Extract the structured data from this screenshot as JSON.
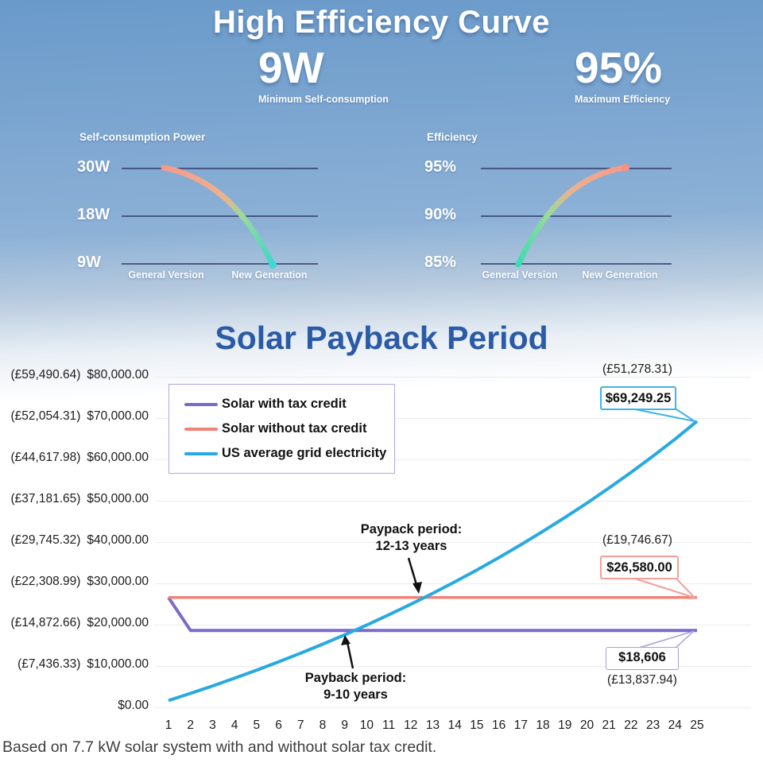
{
  "hero": {
    "title": "High Efficiency Curve",
    "stat_left": {
      "value": "9W",
      "label": "Minimum Self-consumption"
    },
    "stat_right": {
      "value": "95%",
      "label": "Maximum Efficiency"
    },
    "mini_left": {
      "title": "Self-consumption Power",
      "ticks": [
        "30W",
        "18W",
        "9W"
      ],
      "x1": "General Version",
      "x2": "New Generation"
    },
    "mini_right": {
      "title": "Efficiency",
      "ticks": [
        "95%",
        "90%",
        "85%"
      ],
      "x1": "General Version",
      "x2": "New Generation"
    }
  },
  "payback": {
    "title": "Solar Payback Period",
    "legend": [
      {
        "label": "Solar with tax credit",
        "color": "#7d6ac8"
      },
      {
        "label": "Solar without tax credit",
        "color": "#ef8378"
      },
      {
        "label": "US average grid electricity",
        "color": "#27a9e1"
      }
    ],
    "y_axis": [
      {
        "gbp": "(£59,490.64)",
        "usd": "$80,000.00"
      },
      {
        "gbp": "(£52,054.31)",
        "usd": "$70,000.00"
      },
      {
        "gbp": "(£44,617.98)",
        "usd": "$60,000.00"
      },
      {
        "gbp": "(£37,181.65)",
        "usd": "$50,000.00"
      },
      {
        "gbp": "(£29,745.32)",
        "usd": "$40,000.00"
      },
      {
        "gbp": "(£22,308.99)",
        "usd": "$30,000.00"
      },
      {
        "gbp": "(£14,872.66)",
        "usd": "$20,000.00"
      },
      {
        "gbp": "(£7,436.33)",
        "usd": "$10,000.00"
      },
      {
        "gbp": "",
        "usd": "$0.00"
      }
    ],
    "x_axis": [
      "1",
      "2",
      "3",
      "4",
      "5",
      "6",
      "7",
      "8",
      "9",
      "10",
      "11",
      "12",
      "13",
      "14",
      "15",
      "16",
      "17",
      "18",
      "19",
      "20",
      "21",
      "22",
      "23",
      "24",
      "25"
    ],
    "callout_grid": {
      "gbp": "(£51,278.31)",
      "usd": "$69,249.25"
    },
    "callout_without": {
      "gbp": "(£19,746.67)",
      "usd": "$26,580.00"
    },
    "callout_with": {
      "usd": "$18,606",
      "gbp": "(£13,837.94)"
    },
    "note_red": {
      "l1": "Paypack period:",
      "l2": "12-13 years"
    },
    "note_purple": {
      "l1": "Payback period:",
      "l2": "9-10 years"
    },
    "footnote": "Based on 7.7 kW solar system with and without solar tax credit."
  },
  "chart_data": [
    {
      "type": "line",
      "title": "Self-consumption Power",
      "categories": [
        "General Version",
        "New Generation"
      ],
      "values": [
        30,
        9
      ],
      "unit": "W",
      "yticks": [
        30,
        18,
        9
      ],
      "gradient": [
        "#f49a8c",
        "#3bd8c8"
      ]
    },
    {
      "type": "line",
      "title": "Efficiency",
      "categories": [
        "General Version",
        "New Generation"
      ],
      "values": [
        85,
        95
      ],
      "unit": "%",
      "yticks": [
        95,
        90,
        85
      ],
      "gradient": [
        "#3bdcb4",
        "#f49a8c"
      ]
    },
    {
      "type": "line",
      "title": "Solar Payback Period",
      "x": [
        1,
        2,
        3,
        4,
        5,
        6,
        7,
        8,
        9,
        10,
        11,
        12,
        13,
        14,
        15,
        16,
        17,
        18,
        19,
        20,
        21,
        22,
        23,
        24,
        25
      ],
      "ylim": [
        0,
        80000
      ],
      "legend_position": "upper-left",
      "series": [
        {
          "name": "Solar with tax credit",
          "color": "#7d6ac8",
          "values": [
            26580,
            18606,
            18606,
            18606,
            18606,
            18606,
            18606,
            18606,
            18606,
            18606,
            18606,
            18606,
            18606,
            18606,
            18606,
            18606,
            18606,
            18606,
            18606,
            18606,
            18606,
            18606,
            18606,
            18606,
            18606
          ]
        },
        {
          "name": "Solar without tax credit",
          "color": "#ef8378",
          "values": [
            26580,
            26580,
            26580,
            26580,
            26580,
            26580,
            26580,
            26580,
            26580,
            26580,
            26580,
            26580,
            26580,
            26580,
            26580,
            26580,
            26580,
            26580,
            26580,
            26580,
            26580,
            26580,
            26580,
            26580,
            26580
          ]
        },
        {
          "name": "US average grid electricity",
          "color": "#27a9e1",
          "values": [
            1660,
            3386,
            5182,
            7049,
            8991,
            11011,
            13111,
            15295,
            17567,
            19930,
            22387,
            24942,
            27600,
            30364,
            33239,
            36228,
            39337,
            42571,
            45934,
            49431,
            53068,
            56851,
            60785,
            64876,
            69249.25
          ]
        }
      ],
      "annotations": [
        "Paypack period: 12-13 years",
        "Payback period: 9-10 years",
        "$69,249.25 (£51,278.31)",
        "$26,580.00 (£19,746.67)",
        "$18,606 (£13,837.94)"
      ]
    }
  ]
}
